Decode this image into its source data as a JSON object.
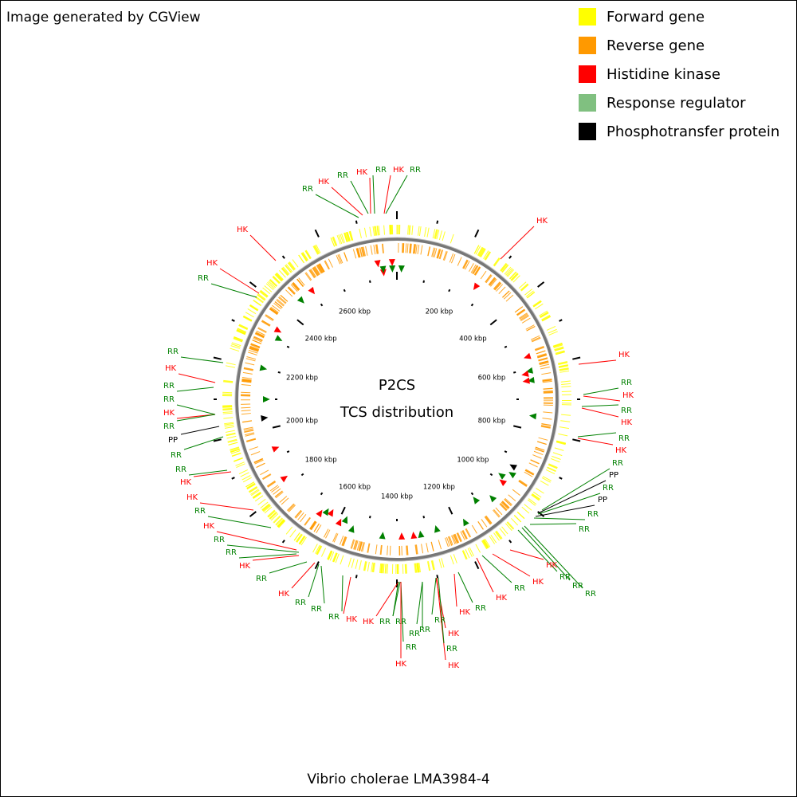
{
  "header": {
    "title": "Image generated by CGView"
  },
  "legend": [
    {
      "label": "Forward gene",
      "color": "#ffff00"
    },
    {
      "label": "Reverse gene",
      "color": "#ff9900"
    },
    {
      "label": "Histidine kinase",
      "color": "#ff0000"
    },
    {
      "label": "Response regulator",
      "color": "#80c080"
    },
    {
      "label": "Phosphotransfer protein",
      "color": "#000000"
    }
  ],
  "center": {
    "title": "P2CS",
    "subtitle": "TCS distribution"
  },
  "ticks": [
    "200 kbp",
    "400 kbp",
    "600 kbp",
    "800 kbp",
    "1000 kbp",
    "1200 kbp",
    "1400 kbp",
    "1600 kbp",
    "1800 kbp",
    "2000 kbp",
    "2200 kbp",
    "2400 kbp",
    "2600 kbp"
  ],
  "features": [
    {
      "label": "RR"
    },
    {
      "label": "HK"
    },
    {
      "label": "RR"
    },
    {
      "label": "HK"
    },
    {
      "label": "RR"
    },
    {
      "label": "HK"
    },
    {
      "label": "RR"
    },
    {
      "label": "HK"
    },
    {
      "label": "HK"
    },
    {
      "label": "HK"
    },
    {
      "label": "RR"
    },
    {
      "label": "RR"
    },
    {
      "label": "HK"
    },
    {
      "label": "RR"
    },
    {
      "label": "RR"
    },
    {
      "label": "HK"
    },
    {
      "label": "RR"
    },
    {
      "label": "PP"
    },
    {
      "label": "RR"
    },
    {
      "label": "RR"
    },
    {
      "label": "HK"
    },
    {
      "label": "HK"
    },
    {
      "label": "RR"
    },
    {
      "label": "HK"
    },
    {
      "label": "RR"
    },
    {
      "label": "RR"
    },
    {
      "label": "HK"
    },
    {
      "label": "RR"
    },
    {
      "label": "HK"
    },
    {
      "label": "RR"
    },
    {
      "label": "RR"
    },
    {
      "label": "RR"
    },
    {
      "label": "HK"
    },
    {
      "label": "HK"
    },
    {
      "label": "RR"
    },
    {
      "label": "RR"
    },
    {
      "label": "RR"
    },
    {
      "label": "HK"
    },
    {
      "label": "RR"
    },
    {
      "label": "RR"
    },
    {
      "label": "HK"
    },
    {
      "label": "RR"
    },
    {
      "label": "HK"
    },
    {
      "label": "RR"
    },
    {
      "label": "HK"
    },
    {
      "label": "RR"
    },
    {
      "label": "HK"
    },
    {
      "label": "RR"
    },
    {
      "label": "HK"
    },
    {
      "label": "RR"
    },
    {
      "label": "RR"
    },
    {
      "label": "RR"
    },
    {
      "label": "HK"
    },
    {
      "label": "RR"
    },
    {
      "label": "RR"
    },
    {
      "label": "PP"
    },
    {
      "label": "RR"
    },
    {
      "label": "PP"
    },
    {
      "label": "RR"
    },
    {
      "label": "HK"
    },
    {
      "label": "RR"
    },
    {
      "label": "HK"
    },
    {
      "label": "RR"
    },
    {
      "label": "HK"
    },
    {
      "label": "RR"
    },
    {
      "label": "HK"
    }
  ],
  "footer": {
    "caption": "Vibrio cholerae LMA3984-4"
  }
}
